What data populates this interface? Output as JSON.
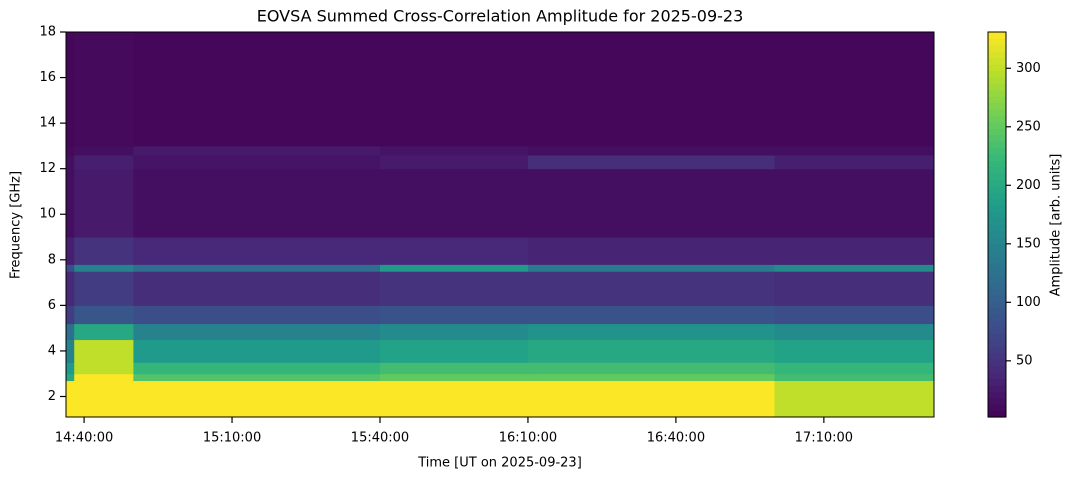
{
  "chart_data": {
    "type": "heatmap",
    "title": "EOVSA Summed Cross-Correlation Amplitude for 2025-09-23",
    "x_label": "Time [UT on 2025-09-23]",
    "y_label": "Frequency [GHz]",
    "colorbar_label": "Amplitude [arb. units]",
    "colormap": "viridis",
    "x": [
      "14:36:20",
      "14:38:00",
      "14:50:00",
      "15:40:00",
      "16:10:00",
      "17:00:00",
      "17:32:20"
    ],
    "y": [
      1.1,
      2.7,
      3.0,
      3.5,
      4.5,
      5.2,
      6,
      7.5,
      7.8,
      9,
      12,
      12.6,
      13,
      18
    ],
    "z": [
      [
        330,
        330,
        330,
        330,
        330,
        300
      ],
      [
        200,
        330,
        240,
        250,
        250,
        230
      ],
      [
        180,
        300,
        220,
        230,
        230,
        220
      ],
      [
        150,
        300,
        180,
        190,
        200,
        190
      ],
      [
        120,
        200,
        150,
        160,
        170,
        160
      ],
      [
        60,
        90,
        80,
        85,
        85,
        80
      ],
      [
        40,
        60,
        45,
        50,
        50,
        45
      ],
      [
        80,
        150,
        120,
        180,
        140,
        160
      ],
      [
        30,
        50,
        40,
        40,
        35,
        35
      ],
      [
        15,
        25,
        15,
        15,
        15,
        15
      ],
      [
        15,
        30,
        20,
        25,
        45,
        30
      ],
      [
        10,
        15,
        25,
        20,
        15,
        15
      ],
      [
        8,
        10,
        8,
        8,
        8,
        8
      ]
    ],
    "xlim": [
      "14:36:20",
      "17:32:20"
    ],
    "xticks": [
      "14:40:00",
      "15:10:00",
      "15:40:00",
      "16:10:00",
      "16:40:00",
      "17:10:00"
    ],
    "ylim": [
      1.1,
      18
    ],
    "yticks": [
      2,
      4,
      6,
      8,
      10,
      12,
      14,
      16,
      18
    ],
    "clim": [
      2,
      331
    ],
    "cticks": [
      50,
      100,
      150,
      200,
      250,
      300
    ]
  }
}
